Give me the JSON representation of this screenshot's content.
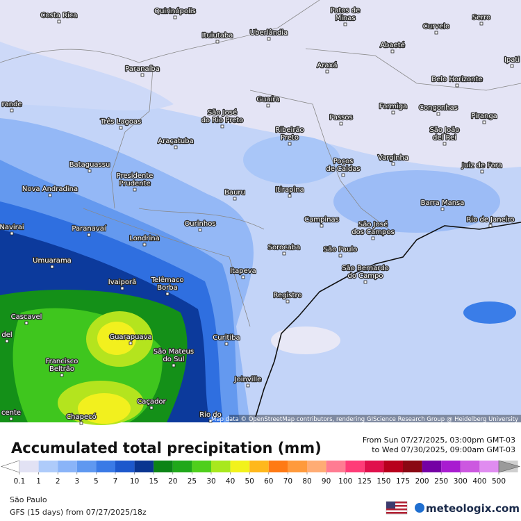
{
  "header": {
    "title": "Accumulated total precipitation (mm)",
    "period_start": "From Sun 07/27/2025, 03:00pm GMT-03",
    "period_end": "to Wed 07/30/2025, 09:00am GMT-03"
  },
  "map": {
    "places": [
      {
        "lines": [
          "Costa Rica"
        ]
      },
      {
        "lines": [
          "Quirinópolis"
        ]
      },
      {
        "lines": [
          "Patos de",
          "Minas"
        ]
      },
      {
        "lines": [
          "Serro"
        ]
      },
      {
        "lines": [
          "Curvelo"
        ]
      },
      {
        "lines": [
          "Ituiutaba"
        ]
      },
      {
        "lines": [
          "Uberlândia"
        ]
      },
      {
        "lines": [
          "Abaeté"
        ]
      },
      {
        "lines": [
          "Ipati"
        ]
      },
      {
        "lines": [
          "Araxá"
        ]
      },
      {
        "lines": [
          "Paranaíba"
        ]
      },
      {
        "lines": [
          "Belo Horizonte"
        ]
      },
      {
        "lines": [
          "Guaíra"
        ]
      },
      {
        "lines": [
          "Formiga"
        ]
      },
      {
        "lines": [
          "Congonhas"
        ]
      },
      {
        "lines": [
          "Passos"
        ]
      },
      {
        "lines": [
          "Piranga"
        ]
      },
      {
        "lines": [
          "rande"
        ]
      },
      {
        "lines": [
          "São José",
          "do Rio Preto"
        ]
      },
      {
        "lines": [
          "Três Lagoas"
        ]
      },
      {
        "lines": [
          "Ribeirão",
          "Preto"
        ]
      },
      {
        "lines": [
          "São João",
          "del Rei"
        ]
      },
      {
        "lines": [
          "Araçatuba"
        ]
      },
      {
        "lines": [
          "Varginha"
        ]
      },
      {
        "lines": [
          "Poços",
          "de Caldas"
        ]
      },
      {
        "lines": [
          "Bataguassu"
        ]
      },
      {
        "lines": [
          "Juiz de Fora"
        ]
      },
      {
        "lines": [
          "Presidente",
          "Prudente"
        ]
      },
      {
        "lines": [
          "Nova Andradina"
        ]
      },
      {
        "lines": [
          "Itirapina"
        ]
      },
      {
        "lines": [
          "Bauru"
        ]
      },
      {
        "lines": [
          "Barra Mansa"
        ]
      },
      {
        "lines": [
          "Campinas"
        ]
      },
      {
        "lines": [
          "Rio de Janeiro"
        ]
      },
      {
        "lines": [
          "São José",
          "dos Campos"
        ]
      },
      {
        "lines": [
          "Navirai"
        ]
      },
      {
        "lines": [
          "Paranavaí"
        ]
      },
      {
        "lines": [
          "Ourinhos"
        ]
      },
      {
        "lines": [
          "Londrina"
        ]
      },
      {
        "lines": [
          "Sorocaba"
        ]
      },
      {
        "lines": [
          "São Paulo"
        ]
      },
      {
        "lines": [
          "Umuarama"
        ]
      },
      {
        "lines": [
          "Itapeva"
        ]
      },
      {
        "lines": [
          "São Bernardo",
          "do Campo"
        ]
      },
      {
        "lines": [
          "Ivaiporã"
        ]
      },
      {
        "lines": [
          "Telêmaco",
          "Borba"
        ]
      },
      {
        "lines": [
          "Registro"
        ]
      },
      {
        "lines": [
          "Cascavel"
        ]
      },
      {
        "lines": [
          "Guarapuava"
        ]
      },
      {
        "lines": [
          "Curitiba"
        ]
      },
      {
        "lines": [
          "del"
        ]
      },
      {
        "lines": [
          "Francisco",
          "Beltrão"
        ]
      },
      {
        "lines": [
          "São Mateus",
          "do Sul"
        ]
      },
      {
        "lines": [
          "Joinville"
        ]
      },
      {
        "lines": [
          "Caçador"
        ]
      },
      {
        "lines": [
          "Chapecó"
        ]
      },
      {
        "lines": [
          "cente"
        ]
      },
      {
        "lines": [
          "Rio do"
        ]
      }
    ],
    "attribution": "Map data © OpenStreetMap contributors, rendering GIScience Research Group @ Heidelberg University"
  },
  "legend": {
    "ticks": [
      0.1,
      1,
      2,
      3,
      5,
      7,
      10,
      15,
      20,
      25,
      30,
      40,
      50,
      60,
      70,
      80,
      90,
      100,
      125,
      150,
      175,
      200,
      250,
      300,
      400,
      500
    ],
    "colors": [
      "#ffffff",
      "#e2e2f4",
      "#aecbfa",
      "#8ab4f8",
      "#5f98f0",
      "#3a7ae6",
      "#1d58cc",
      "#0a3590",
      "#0c8416",
      "#20a81a",
      "#4fcf1c",
      "#a8e81e",
      "#f2f21c",
      "#ffb81c",
      "#ff7a14",
      "#ff9a3c",
      "#ffac74",
      "#ff7c92",
      "#ff3c78",
      "#e0104c",
      "#b8001c",
      "#8a0812",
      "#7400a4",
      "#a81cd0",
      "#cc58e0",
      "#e08cf0",
      "#cfcfcf",
      "#9a9a9a"
    ]
  },
  "footer": {
    "location": "São Paulo",
    "model_run": "GFS (15 days) from 07/27/2025/18z",
    "brand": "meteologix.com"
  }
}
